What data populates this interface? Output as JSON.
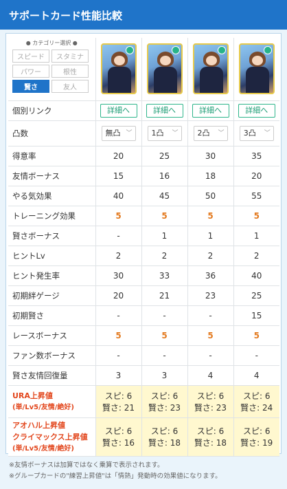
{
  "header": {
    "title": "サポートカード性能比較"
  },
  "category": {
    "title": "● カテゴリー選択 ●",
    "buttons": [
      {
        "label": "スピード",
        "active": false
      },
      {
        "label": "スタミナ",
        "active": false
      },
      {
        "label": "パワー",
        "active": false
      },
      {
        "label": "根性",
        "active": false
      },
      {
        "label": "賢さ",
        "active": true
      },
      {
        "label": "友人",
        "active": false
      }
    ]
  },
  "rows": {
    "link": {
      "label": "個別リンク",
      "button": "詳細へ"
    },
    "totsu": {
      "label": "凸数",
      "values": [
        "無凸",
        "1凸",
        "2凸",
        "3凸"
      ]
    },
    "tokui": {
      "label": "得意率",
      "values": [
        "20",
        "25",
        "30",
        "35"
      ]
    },
    "yujo": {
      "label": "友情ボーナス",
      "values": [
        "15",
        "16",
        "18",
        "20"
      ]
    },
    "yaruki": {
      "label": "やる気効果",
      "values": [
        "40",
        "45",
        "50",
        "55"
      ]
    },
    "training": {
      "label": "トレーニング効果",
      "values": [
        "5",
        "5",
        "5",
        "5"
      ]
    },
    "kashikoi": {
      "label": "賢さボーナス",
      "values": [
        "-",
        "1",
        "1",
        "1"
      ]
    },
    "hintlv": {
      "label": "ヒントLv",
      "values": [
        "2",
        "2",
        "2",
        "2"
      ]
    },
    "hintrate": {
      "label": "ヒント発生率",
      "values": [
        "30",
        "33",
        "36",
        "40"
      ]
    },
    "kizuna": {
      "label": "初期絆ゲージ",
      "values": [
        "20",
        "21",
        "23",
        "25"
      ]
    },
    "initkashi": {
      "label": "初期賢さ",
      "values": [
        "-",
        "-",
        "-",
        "15"
      ]
    },
    "race": {
      "label": "レースボーナス",
      "values": [
        "5",
        "5",
        "5",
        "5"
      ]
    },
    "fan": {
      "label": "ファン数ボーナス",
      "values": [
        "-",
        "-",
        "-",
        "-"
      ]
    },
    "kaifuku": {
      "label": "賢さ友情回復量",
      "values": [
        "3",
        "3",
        "4",
        "4"
      ]
    },
    "ura": {
      "label1": "URA上昇値",
      "label2": "(単/Lv5/友情/絶好)",
      "values": [
        {
          "spd": "スピ: 6",
          "wis": "賢さ: 21"
        },
        {
          "spd": "スピ: 6",
          "wis": "賢さ: 23"
        },
        {
          "spd": "スピ: 6",
          "wis": "賢さ: 23"
        },
        {
          "spd": "スピ: 6",
          "wis": "賢さ: 24"
        }
      ]
    },
    "aoharu": {
      "label1": "アオハル上昇値",
      "label2": "クライマックス上昇値",
      "label3": "(単/Lv5/友情/絶好)",
      "values": [
        {
          "spd": "スピ: 6",
          "wis": "賢さ: 16"
        },
        {
          "spd": "スピ: 6",
          "wis": "賢さ: 18"
        },
        {
          "spd": "スピ: 6",
          "wis": "賢さ: 18"
        },
        {
          "spd": "スピ: 6",
          "wis": "賢さ: 19"
        }
      ]
    }
  },
  "notes": [
    "※友情ボーナスは加算ではなく乗算で表示されます。",
    "※グループカードの\"練習上昇値\"は「情熱」発動時の効果値になります。"
  ]
}
